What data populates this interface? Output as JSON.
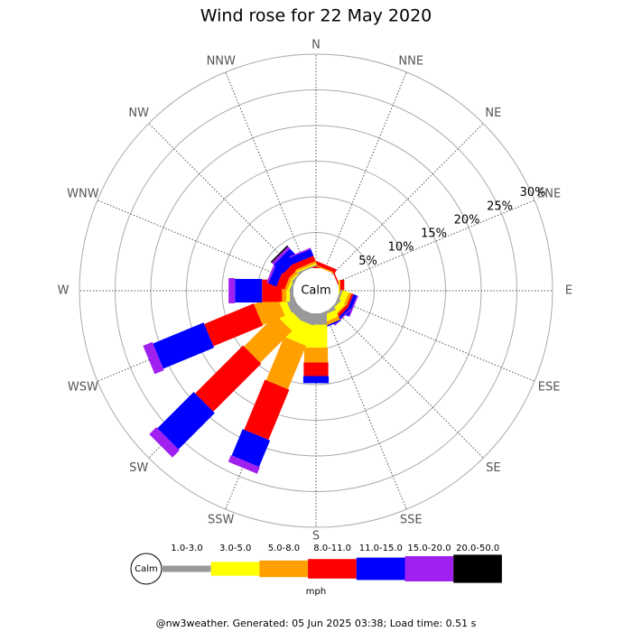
{
  "chart_data": {
    "type": "windrose",
    "title": "Wind rose for 22 May 2020",
    "categories": [
      "N",
      "NNE",
      "NE",
      "ENE",
      "E",
      "ESE",
      "SE",
      "SSE",
      "S",
      "SSW",
      "SW",
      "WSW",
      "W",
      "WNW",
      "NW",
      "NNW"
    ],
    "series": [
      {
        "name": "1.0-3.0",
        "color": "#999999",
        "values": [
          0,
          0,
          0,
          0,
          0,
          0.3,
          0.3,
          0.4,
          1.6,
          1.5,
          1.3,
          1.2,
          0.5,
          0.3,
          0.2,
          0.2
        ]
      },
      {
        "name": "3.0-5.0",
        "color": "#ffff00",
        "values": [
          0,
          0,
          0,
          0,
          0.2,
          0.9,
          0.8,
          1.0,
          3.2,
          3.0,
          1.9,
          1.0,
          0.5,
          0.3,
          0.2,
          0.2
        ]
      },
      {
        "name": "5.0-8.0",
        "color": "#ff9f00",
        "values": [
          0,
          0.2,
          0,
          0,
          0,
          0.4,
          0.2,
          0.5,
          2.1,
          6.6,
          6.3,
          3.4,
          0.6,
          0.4,
          0.4,
          0.3
        ]
      },
      {
        "name": "8.0-11.0",
        "color": "#ff0000",
        "values": [
          0.3,
          0.5,
          0,
          0.2,
          0.6,
          0.3,
          0.4,
          0,
          1.9,
          7.6,
          9.5,
          7.5,
          2.8,
          1.2,
          1.0,
          0.8
        ]
      },
      {
        "name": "11.0-15.0",
        "color": "#0000ff",
        "values": [
          0,
          0,
          0,
          0,
          0,
          0.5,
          0.3,
          0.2,
          1.0,
          4.0,
          7.2,
          7.7,
          3.8,
          1.2,
          1.8,
          1.0
        ]
      },
      {
        "name": "15.0-20.0",
        "color": "#a020f0",
        "values": [
          0,
          0,
          0,
          0,
          0,
          0.2,
          0.2,
          0,
          0,
          1.0,
          1.4,
          1.4,
          0.9,
          0.3,
          0.4,
          0.2
        ]
      },
      {
        "name": "20.0-50.0",
        "color": "#000000",
        "values": [
          0,
          0,
          0,
          0,
          0,
          0,
          0,
          0,
          0,
          0,
          0,
          0,
          0,
          0,
          0.2,
          0
        ]
      }
    ],
    "rlim": [
      0,
      30
    ],
    "rticks": [
      {
        "value": 5,
        "label": "5%"
      },
      {
        "value": 10,
        "label": "10%"
      },
      {
        "value": 15,
        "label": "15%"
      },
      {
        "value": 20,
        "label": "20%"
      },
      {
        "value": 25,
        "label": "25%"
      },
      {
        "value": 30,
        "label": "30%"
      }
    ],
    "calm_label": "Calm",
    "units_label": "mph",
    "footer": "@nw3weather. Generated: 05 Jun 2025 03:38; Load time: 0.51 s"
  }
}
